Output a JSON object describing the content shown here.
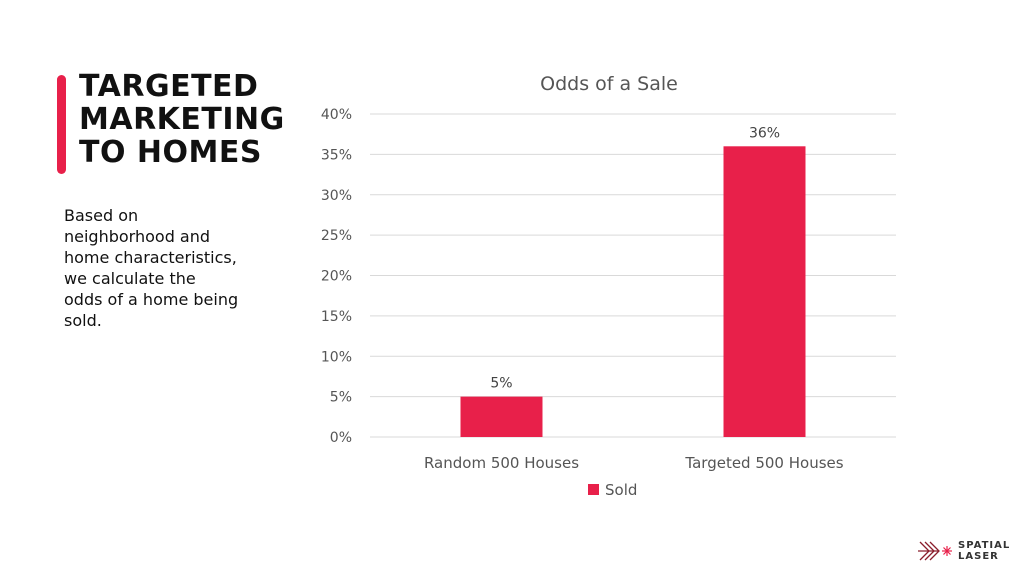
{
  "slide": {
    "title_lines": [
      "TARGETED",
      "MARKETING",
      "TO HOMES"
    ],
    "body": "Based on neighborhood and home characteristics, we calculate the odds of a home being sold.",
    "accent_color": "#e8204a"
  },
  "logo": {
    "lines": [
      "SPATIAL",
      "LASER"
    ],
    "icon": "chevron-laser-icon",
    "color": "#8b1e2c"
  },
  "chart_data": {
    "type": "bar",
    "title": "Odds of a Sale",
    "categories": [
      "Random 500 Houses",
      "Targeted 500 Houses"
    ],
    "series": [
      {
        "name": "Sold",
        "values": [
          5,
          36
        ],
        "labels": [
          "5%",
          "36%"
        ],
        "color": "#e8204a"
      }
    ],
    "ylim": [
      0,
      40
    ],
    "yticks": [
      0,
      5,
      10,
      15,
      20,
      25,
      30,
      35,
      40
    ],
    "ytick_labels": [
      "0%",
      "5%",
      "10%",
      "15%",
      "20%",
      "25%",
      "30%",
      "35%",
      "40%"
    ],
    "xlabel": "",
    "ylabel": "",
    "grid": true,
    "legend": "bottom"
  }
}
